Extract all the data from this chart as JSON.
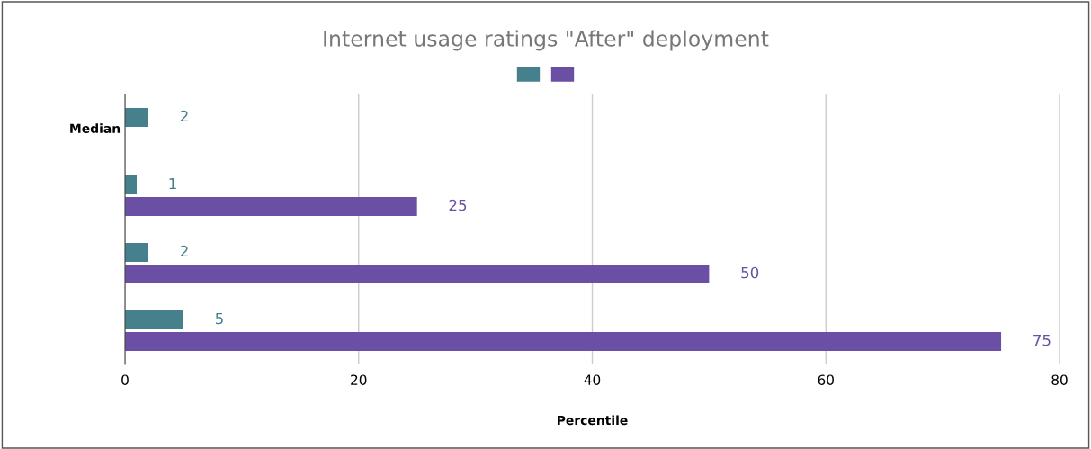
{
  "chart_data": {
    "type": "bar",
    "orientation": "horizontal",
    "title": "Internet usage ratings \"After\" deployment",
    "xlabel": "Percentile",
    "categories": [
      "Median",
      null,
      null,
      null
    ],
    "series": [
      {
        "color": "#45808c",
        "values": [
          2,
          1,
          2,
          5
        ]
      },
      {
        "color": "#6a4fa5",
        "values": [
          null,
          25,
          50,
          75
        ]
      }
    ],
    "xlim": [
      0,
      80
    ],
    "xticks": [
      0,
      20,
      40,
      60,
      80
    ],
    "grid": "x",
    "data_labels": true
  }
}
